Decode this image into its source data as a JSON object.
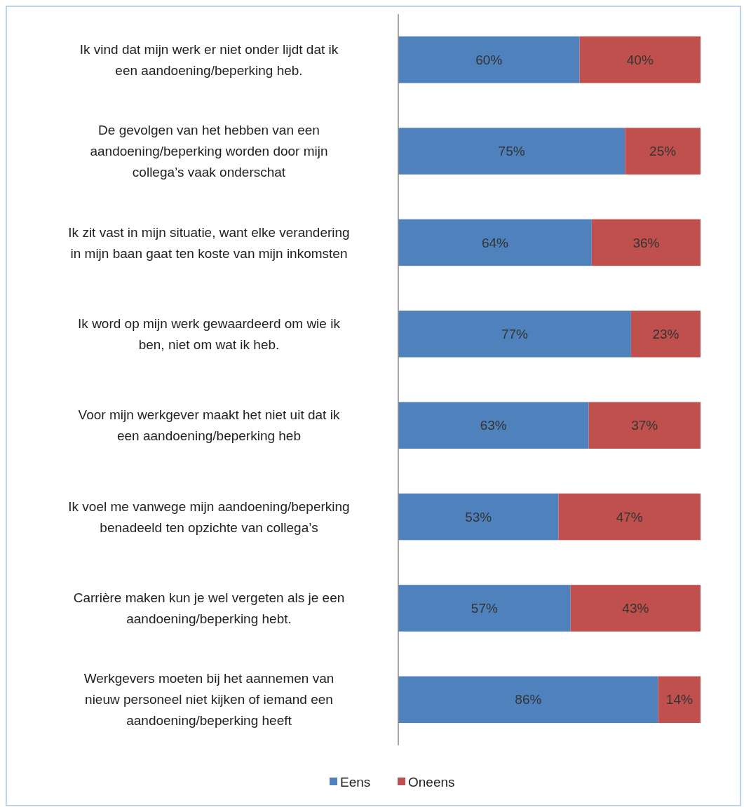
{
  "chart_data": {
    "type": "bar",
    "orientation": "horizontal",
    "stacked": true,
    "categories": [
      "Ik vind dat mijn werk er niet onder lijdt dat ik\neen aandoening/beperking heb.",
      "De gevolgen van het hebben van een\naandoening/beperking worden door mijn\ncollega’s vaak onderschat",
      "Ik zit vast in mijn situatie, want elke verandering\nin mijn baan gaat ten koste van mijn inkomsten",
      "Ik word op mijn werk gewaardeerd om wie ik\nben, niet om wat ik heb.",
      "Voor mijn werkgever maakt het niet uit dat ik\neen aandoening/beperking heb",
      "Ik voel me vanwege mijn aandoening/beperking\nbenadeeld ten opzichte van collega’s",
      "Carrière maken kun je wel vergeten als je een\naandoening/beperking hebt.",
      "Werkgevers moeten bij het aannemen van\nnieuw personeel niet kijken of iemand een\naandoening/beperking heeft"
    ],
    "series": [
      {
        "name": "Eens",
        "color": "#4f81bd",
        "values": [
          60,
          75,
          64,
          77,
          63,
          53,
          57,
          86
        ],
        "value_labels": [
          "60%",
          "75%",
          "64%",
          "77%",
          "63%",
          "53%",
          "57%",
          "86%"
        ]
      },
      {
        "name": "Oneens",
        "color": "#c0504d",
        "values": [
          40,
          25,
          36,
          23,
          37,
          47,
          43,
          14
        ],
        "value_labels": [
          "40%",
          "25%",
          "36%",
          "23%",
          "37%",
          "47%",
          "43%",
          "14%"
        ]
      }
    ],
    "xlim": [
      0,
      100
    ],
    "tick_labels": "y",
    "legend": "bottom"
  }
}
